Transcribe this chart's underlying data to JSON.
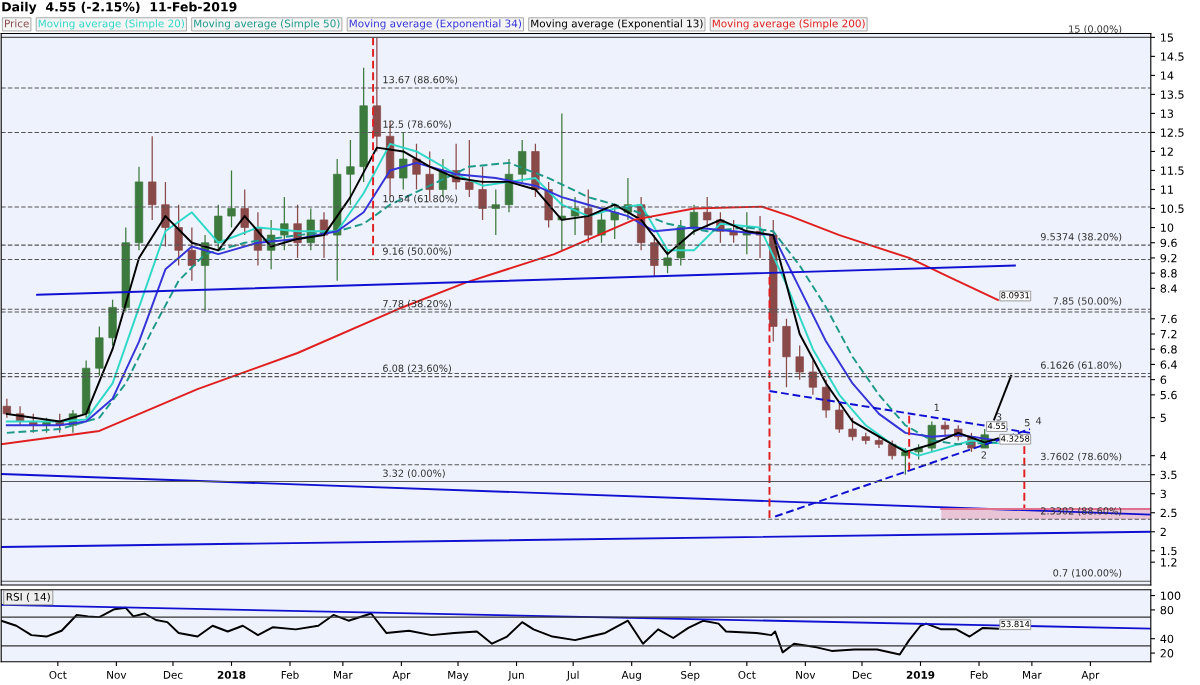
{
  "chart_data": [
    {
      "type": "candlestick",
      "title": "Daily  4.55 (-2.15%)  11-Feb-2019",
      "legend": "top left",
      "tick_labels": "y",
      "xlim": [
        "2017-09-01",
        "2019-05-03"
      ],
      "ylim": [
        0.6,
        15.1
      ],
      "yticks": [
        15,
        14.5,
        14,
        13.5,
        13,
        12.5,
        12,
        11.5,
        11,
        10.5,
        10,
        9.6,
        9.2,
        8.8,
        8.4,
        7.6,
        7.2,
        6.8,
        6.4,
        6,
        5.6,
        5,
        4,
        3.5,
        3,
        2.5,
        2,
        1.5,
        1.2
      ],
      "series": [
        {
          "type": "candlestick",
          "name": "Price",
          "x": [
            "2017-09-04",
            "2017-09-11",
            "2017-09-18",
            "2017-09-25",
            "2017-10-02",
            "2017-10-09",
            "2017-10-16",
            "2017-10-23",
            "2017-10-30",
            "2017-11-06",
            "2017-11-13",
            "2017-11-20",
            "2017-11-27",
            "2017-12-04",
            "2017-12-11",
            "2017-12-18",
            "2017-12-25",
            "2018-01-01",
            "2018-01-08",
            "2018-01-15",
            "2018-01-22",
            "2018-01-29",
            "2018-02-05",
            "2018-02-12",
            "2018-02-19",
            "2018-02-26",
            "2018-03-05",
            "2018-03-12",
            "2018-03-19",
            "2018-03-26",
            "2018-04-02",
            "2018-04-09",
            "2018-04-16",
            "2018-04-23",
            "2018-04-30",
            "2018-05-07",
            "2018-05-14",
            "2018-05-21",
            "2018-05-28",
            "2018-06-04",
            "2018-06-11",
            "2018-06-18",
            "2018-06-25",
            "2018-07-02",
            "2018-07-09",
            "2018-07-16",
            "2018-07-23",
            "2018-07-30",
            "2018-08-06",
            "2018-08-13",
            "2018-08-20",
            "2018-08-27",
            "2018-09-03",
            "2018-09-10",
            "2018-09-17",
            "2018-09-24",
            "2018-10-01",
            "2018-10-08",
            "2018-10-15",
            "2018-10-22",
            "2018-10-29",
            "2018-11-05",
            "2018-11-12",
            "2018-11-19",
            "2018-11-26",
            "2018-12-03",
            "2018-12-10",
            "2018-12-17",
            "2018-12-24",
            "2018-12-31",
            "2019-01-07",
            "2019-01-14",
            "2019-01-21",
            "2019-01-28",
            "2019-02-04"
          ],
          "ohlc": [
            [
              5.3,
              5.5,
              5.0,
              5.1
            ],
            [
              5.1,
              5.3,
              4.8,
              4.9
            ],
            [
              4.9,
              5.1,
              4.6,
              4.8
            ],
            [
              4.8,
              5.0,
              4.6,
              4.9
            ],
            [
              4.9,
              5.1,
              4.6,
              4.8
            ],
            [
              4.8,
              5.2,
              4.6,
              5.1
            ],
            [
              5.1,
              6.5,
              5.0,
              6.3
            ],
            [
              6.3,
              7.4,
              6.1,
              7.1
            ],
            [
              7.1,
              8.1,
              6.9,
              7.9
            ],
            [
              7.9,
              10.0,
              7.8,
              9.6
            ],
            [
              9.6,
              11.6,
              9.4,
              11.2
            ],
            [
              11.2,
              12.4,
              10.2,
              10.6
            ],
            [
              10.6,
              11.2,
              9.5,
              10.0
            ],
            [
              10.0,
              10.6,
              9.0,
              9.4
            ],
            [
              9.4,
              10.0,
              8.6,
              9.0
            ],
            [
              9.0,
              9.8,
              7.8,
              9.6
            ],
            [
              9.6,
              10.6,
              9.4,
              10.3
            ],
            [
              10.3,
              11.5,
              10.0,
              10.5
            ],
            [
              10.5,
              11.0,
              9.8,
              10.0
            ],
            [
              10.0,
              10.4,
              9.0,
              9.4
            ],
            [
              9.4,
              10.2,
              8.9,
              9.8
            ],
            [
              9.8,
              10.8,
              9.4,
              10.1
            ],
            [
              10.1,
              10.6,
              9.2,
              9.6
            ],
            [
              9.6,
              10.5,
              9.4,
              10.2
            ],
            [
              10.2,
              10.4,
              9.2,
              9.8
            ],
            [
              9.8,
              11.8,
              8.6,
              11.4
            ],
            [
              11.4,
              12.3,
              10.6,
              11.6
            ],
            [
              11.6,
              14.2,
              11.2,
              13.2
            ],
            [
              13.2,
              15.0,
              12.0,
              12.4
            ],
            [
              12.4,
              12.8,
              10.8,
              11.3
            ],
            [
              11.3,
              12.5,
              11.0,
              11.8
            ],
            [
              11.8,
              12.2,
              11.0,
              11.4
            ],
            [
              11.4,
              12.0,
              10.7,
              11.0
            ],
            [
              11.0,
              11.8,
              10.8,
              11.5
            ],
            [
              11.5,
              12.2,
              11.0,
              11.2
            ],
            [
              11.2,
              12.3,
              10.8,
              11.0
            ],
            [
              11.0,
              11.6,
              10.2,
              10.5
            ],
            [
              10.5,
              11.0,
              9.8,
              10.6
            ],
            [
              10.6,
              11.8,
              10.4,
              11.4
            ],
            [
              11.4,
              12.3,
              11.2,
              12.0
            ],
            [
              12.0,
              12.2,
              10.8,
              11.0
            ],
            [
              11.0,
              11.2,
              10.0,
              10.2
            ],
            [
              10.2,
              13.0,
              9.4,
              10.3
            ],
            [
              10.3,
              10.8,
              9.8,
              10.5
            ],
            [
              10.5,
              11.0,
              9.6,
              9.8
            ],
            [
              9.8,
              10.4,
              9.6,
              10.2
            ],
            [
              10.2,
              10.6,
              9.7,
              10.4
            ],
            [
              10.4,
              11.3,
              10.2,
              10.6
            ],
            [
              10.6,
              10.8,
              9.4,
              9.6
            ],
            [
              9.6,
              9.8,
              8.7,
              9.0
            ],
            [
              9.0,
              9.4,
              8.8,
              9.2
            ],
            [
              9.2,
              10.2,
              9.0,
              10.0
            ],
            [
              10.0,
              10.6,
              9.8,
              10.4
            ],
            [
              10.4,
              10.8,
              10.0,
              10.2
            ],
            [
              10.2,
              10.4,
              9.6,
              9.9
            ],
            [
              9.9,
              10.2,
              9.6,
              9.8
            ],
            [
              9.8,
              10.4,
              9.3,
              9.9
            ],
            [
              9.9,
              10.3,
              9.2,
              9.8
            ],
            [
              9.8,
              10.2,
              7.0,
              7.4
            ],
            [
              7.4,
              7.6,
              5.8,
              6.6
            ],
            [
              6.6,
              6.9,
              6.0,
              6.2
            ],
            [
              6.2,
              6.5,
              5.6,
              5.8
            ],
            [
              5.8,
              6.0,
              5.0,
              5.2
            ],
            [
              5.2,
              5.4,
              4.6,
              4.7
            ],
            [
              4.7,
              5.0,
              4.4,
              4.5
            ],
            [
              4.5,
              4.6,
              4.3,
              4.4
            ],
            [
              4.4,
              4.5,
              4.2,
              4.3
            ],
            [
              4.3,
              4.4,
              3.9,
              4.0
            ],
            [
              4.0,
              4.2,
              3.5,
              4.1
            ],
            [
              4.1,
              4.3,
              3.9,
              4.2
            ],
            [
              4.2,
              4.9,
              4.1,
              4.8
            ],
            [
              4.8,
              4.9,
              4.5,
              4.7
            ],
            [
              4.7,
              4.8,
              4.4,
              4.5
            ],
            [
              4.5,
              4.6,
              4.1,
              4.2
            ],
            [
              4.2,
              4.7,
              4.2,
              4.55
            ]
          ],
          "value_labels": [
            null,
            null,
            null,
            null,
            null,
            null,
            null,
            null,
            null,
            null,
            null,
            null,
            null,
            null,
            null,
            null,
            null,
            null,
            null,
            null,
            null,
            null,
            null,
            null,
            null,
            null,
            null,
            null,
            null,
            null,
            null,
            null,
            null,
            null,
            null,
            null,
            null,
            null,
            null,
            null,
            null,
            null,
            null,
            null,
            null,
            null,
            null,
            null,
            null,
            null,
            null,
            null,
            null,
            null,
            null,
            null,
            null,
            null,
            null,
            null,
            null,
            null,
            null,
            null,
            null,
            null,
            null,
            null,
            null,
            null,
            null,
            null,
            null,
            null,
            "4.55"
          ],
          "colors": [
            "#8a4a4a",
            "#8a4a4a",
            "#8a4a4a",
            "#3d7a3d",
            "#8a4a4a",
            "#3d7a3d",
            "#3d7a3d",
            "#3d7a3d",
            "#3d7a3d",
            "#3d7a3d",
            "#3d7a3d",
            "#8a4a4a",
            "#8a4a4a",
            "#8a4a4a",
            "#8a4a4a",
            "#3d7a3d",
            "#3d7a3d",
            "#3d7a3d",
            "#8a4a4a",
            "#8a4a4a",
            "#3d7a3d",
            "#3d7a3d",
            "#8a4a4a",
            "#3d7a3d",
            "#8a4a4a",
            "#3d7a3d",
            "#3d7a3d",
            "#3d7a3d",
            "#8a4a4a",
            "#8a4a4a",
            "#3d7a3d",
            "#8a4a4a",
            "#8a4a4a",
            "#3d7a3d",
            "#8a4a4a",
            "#8a4a4a",
            "#8a4a4a",
            "#3d7a3d",
            "#3d7a3d",
            "#3d7a3d",
            "#8a4a4a",
            "#8a4a4a",
            "#3d7a3d",
            "#3d7a3d",
            "#8a4a4a",
            "#3d7a3d",
            "#3d7a3d",
            "#3d7a3d",
            "#8a4a4a",
            "#8a4a4a",
            "#3d7a3d",
            "#3d7a3d",
            "#3d7a3d",
            "#8a4a4a",
            "#8a4a4a",
            "#8a4a4a",
            "#3d7a3d",
            "#8a4a4a",
            "#8a4a4a",
            "#8a4a4a",
            "#8a4a4a",
            "#8a4a4a",
            "#8a4a4a",
            "#8a4a4a",
            "#8a4a4a",
            "#8a4a4a",
            "#8a4a4a",
            "#8a4a4a",
            "#3d7a3d",
            "#3d7a3d",
            "#3d7a3d",
            "#8a4a4a",
            "#8a4a4a",
            "#8a4a4a",
            "#3d7a3d"
          ]
        },
        {
          "type": "line",
          "name": "Moving average (Simple 20)",
          "color": "#30d8c8",
          "x": [
            "2017-09-04",
            "2017-10-02",
            "2017-10-16",
            "2017-10-30",
            "2017-11-13",
            "2017-11-27",
            "2017-12-11",
            "2017-12-25",
            "2018-01-15",
            "2018-02-05",
            "2018-02-26",
            "2018-03-12",
            "2018-03-26",
            "2018-04-09",
            "2018-04-30",
            "2018-05-14",
            "2018-05-28",
            "2018-06-11",
            "2018-06-25",
            "2018-07-09",
            "2018-07-23",
            "2018-08-06",
            "2018-08-20",
            "2018-09-03",
            "2018-09-17",
            "2018-10-08",
            "2018-10-22",
            "2018-11-05",
            "2018-11-19",
            "2018-12-03",
            "2018-12-17",
            "2018-12-31",
            "2019-01-14",
            "2019-01-28",
            "2019-02-11"
          ],
          "values": [
            4.9,
            4.9,
            4.95,
            5.9,
            7.9,
            9.9,
            10.4,
            9.6,
            10.0,
            9.9,
            9.9,
            10.9,
            12.2,
            12.0,
            11.4,
            11.1,
            11.2,
            11.3,
            10.6,
            10.3,
            10.5,
            10.6,
            9.4,
            9.4,
            10.1,
            10.0,
            8.5,
            6.8,
            5.6,
            4.8,
            4.3,
            4.0,
            4.2,
            4.4,
            4.3258
          ],
          "value_labels": [
            null,
            null,
            null,
            null,
            null,
            null,
            null,
            null,
            null,
            null,
            null,
            null,
            null,
            null,
            null,
            null,
            null,
            null,
            null,
            null,
            null,
            null,
            null,
            null,
            null,
            null,
            null,
            null,
            null,
            null,
            null,
            null,
            null,
            null,
            "4.3258"
          ]
        },
        {
          "type": "line",
          "name": "Moving average (Simple 50)",
          "color": "#1e9a8a",
          "line_style": "dashed",
          "x": [
            "2017-09-04",
            "2017-10-02",
            "2017-10-23",
            "2017-11-06",
            "2017-11-20",
            "2017-12-04",
            "2017-12-18",
            "2018-01-08",
            "2018-02-05",
            "2018-02-26",
            "2018-03-12",
            "2018-03-26",
            "2018-04-16",
            "2018-05-07",
            "2018-05-28",
            "2018-06-18",
            "2018-07-09",
            "2018-07-30",
            "2018-08-20",
            "2018-09-10",
            "2018-10-01",
            "2018-10-15",
            "2018-10-29",
            "2018-11-12",
            "2018-11-26",
            "2018-12-10",
            "2018-12-24",
            "2019-01-07",
            "2019-01-21",
            "2019-02-11"
          ],
          "values": [
            4.6,
            4.7,
            5.0,
            5.9,
            7.3,
            8.6,
            9.3,
            9.6,
            9.8,
            9.9,
            10.1,
            10.6,
            11.1,
            11.6,
            11.7,
            11.3,
            10.8,
            10.5,
            10.1,
            9.9,
            10.0,
            9.9,
            9.0,
            7.9,
            6.6,
            5.6,
            4.8,
            4.4,
            4.3,
            4.35
          ]
        },
        {
          "type": "line",
          "name": "Moving average (Exponential 34)",
          "color": "#3434d8",
          "x": [
            "2017-09-04",
            "2017-10-02",
            "2017-10-16",
            "2017-10-30",
            "2017-11-13",
            "2017-11-27",
            "2017-12-11",
            "2017-12-25",
            "2018-01-15",
            "2018-02-05",
            "2018-02-26",
            "2018-03-12",
            "2018-03-26",
            "2018-04-09",
            "2018-04-30",
            "2018-05-21",
            "2018-06-11",
            "2018-06-25",
            "2018-07-09",
            "2018-07-30",
            "2018-08-13",
            "2018-09-03",
            "2018-09-24",
            "2018-10-15",
            "2018-10-29",
            "2018-11-12",
            "2018-11-26",
            "2018-12-10",
            "2018-12-24",
            "2019-01-07",
            "2019-01-21",
            "2019-02-11"
          ],
          "values": [
            4.8,
            4.8,
            4.9,
            5.5,
            7.0,
            8.9,
            9.5,
            9.3,
            9.6,
            9.7,
            9.9,
            10.4,
            11.5,
            11.7,
            11.4,
            11.3,
            11.1,
            10.8,
            10.6,
            10.3,
            9.9,
            10.0,
            9.9,
            9.8,
            8.4,
            7.0,
            5.9,
            5.1,
            4.6,
            4.5,
            4.55,
            4.4
          ]
        },
        {
          "type": "line",
          "name": "Moving average (Exponential 13)",
          "color": "#000000",
          "x": [
            "2017-09-04",
            "2017-10-02",
            "2017-10-16",
            "2017-10-30",
            "2017-11-13",
            "2017-11-27",
            "2017-12-11",
            "2017-12-25",
            "2018-01-08",
            "2018-01-22",
            "2018-02-05",
            "2018-02-19",
            "2018-03-05",
            "2018-03-19",
            "2018-04-02",
            "2018-04-16",
            "2018-04-30",
            "2018-05-14",
            "2018-05-28",
            "2018-06-11",
            "2018-06-25",
            "2018-07-09",
            "2018-07-23",
            "2018-08-06",
            "2018-08-20",
            "2018-09-03",
            "2018-09-17",
            "2018-10-01",
            "2018-10-15",
            "2018-10-29",
            "2018-11-12",
            "2018-11-26",
            "2018-12-10",
            "2018-12-24",
            "2019-01-07",
            "2019-01-21",
            "2019-02-04",
            "2019-02-11"
          ],
          "values": [
            5.1,
            4.9,
            5.1,
            6.8,
            9.2,
            10.3,
            9.6,
            9.4,
            10.3,
            9.5,
            9.7,
            9.8,
            10.8,
            12.1,
            12.0,
            11.6,
            11.3,
            11.2,
            11.2,
            11.0,
            10.2,
            10.3,
            10.6,
            10.2,
            9.3,
            9.9,
            10.2,
            9.9,
            9.8,
            7.2,
            5.9,
            4.9,
            4.5,
            4.1,
            4.3,
            4.6,
            4.35,
            4.45
          ]
        },
        {
          "type": "line",
          "name": "Moving average (Simple 200)",
          "color": "#e02020",
          "x": [
            "2017-09-01",
            "2017-10-23",
            "2017-12-14",
            "2018-02-05",
            "2018-03-30",
            "2018-05-05",
            "2018-06-21",
            "2018-08-02",
            "2018-09-03",
            "2018-10-09",
            "2018-10-24",
            "2018-11-19",
            "2018-12-26",
            "2019-01-16",
            "2019-02-11"
          ],
          "values": [
            4.3,
            4.65,
            5.75,
            6.7,
            7.85,
            8.55,
            9.3,
            10.2,
            10.5,
            10.55,
            10.3,
            9.8,
            9.2,
            8.7,
            8.0931
          ],
          "value_labels": [
            null,
            null,
            null,
            null,
            null,
            null,
            null,
            null,
            null,
            null,
            null,
            null,
            null,
            null,
            "8.0931"
          ]
        },
        {
          "type": "line",
          "color": "#1010d0",
          "x": [
            "2017-09-20",
            "2019-02-20"
          ],
          "values": [
            8.23,
            9.0
          ]
        },
        {
          "type": "line",
          "color": "#1010d0",
          "x": [
            "2017-09-01",
            "2019-05-03"
          ],
          "values": [
            3.52,
            2.45
          ]
        },
        {
          "type": "line",
          "color": "#1010d0",
          "x": [
            "2017-09-01",
            "2019-05-03"
          ],
          "values": [
            1.6,
            2.0
          ]
        },
        {
          "type": "line",
          "color": "#1010d0",
          "line_style": "dashed",
          "x": [
            "2018-10-13",
            "2019-02-28"
          ],
          "values": [
            5.7,
            4.6
          ]
        },
        {
          "type": "line",
          "color": "#1010d0",
          "line_style": "dashed",
          "x": [
            "2018-10-16",
            "2019-02-28"
          ],
          "values": [
            2.4,
            4.7
          ]
        },
        {
          "type": "line",
          "color": "#e02020",
          "line_style": "dashed",
          "x": [
            "2018-03-17",
            "2018-03-17"
          ],
          "values": [
            15.0,
            9.15
          ]
        },
        {
          "type": "line",
          "color": "#e02020",
          "line_style": "dashed",
          "x": [
            "2018-10-13",
            "2018-10-13"
          ],
          "values": [
            8.7,
            2.35
          ]
        },
        {
          "type": "line",
          "color": "#e02020",
          "line_style": "dashed",
          "x": [
            "2018-12-26",
            "2018-12-26"
          ],
          "values": [
            5.05,
            3.52
          ]
        },
        {
          "type": "line",
          "color": "#e02020",
          "line_style": "dashed",
          "x": [
            "2019-02-25",
            "2019-02-25"
          ],
          "values": [
            4.25,
            2.6
          ]
        },
        {
          "type": "line",
          "color": "#000000",
          "x": [
            "2019-02-09",
            "2019-02-18"
          ],
          "values": [
            4.95,
            6.1
          ]
        },
        {
          "type": "line",
          "color": "#e07090",
          "x": [
            "2019-01-12",
            "2019-05-03"
          ],
          "values": [
            2.6,
            2.6
          ],
          "lower": [
            2.33,
            2.33
          ],
          "upper": [
            2.6,
            2.6
          ]
        }
      ],
      "ref_lines": [
        {
          "axis": "y",
          "value": 15,
          "label": "15 (0.00%)",
          "color": "#555555",
          "line_style": "solid"
        },
        {
          "axis": "y",
          "value": 13.67,
          "color": "#555555",
          "line_style": "dashed"
        },
        {
          "axis": "y",
          "value": 12.5,
          "color": "#555555",
          "line_style": "dashed"
        },
        {
          "axis": "y",
          "value": 10.54,
          "color": "#555555",
          "line_style": "dashed"
        },
        {
          "axis": "y",
          "value": 9.16,
          "color": "#555555",
          "line_style": "dashed"
        },
        {
          "axis": "y",
          "value": 7.78,
          "color": "#555555",
          "line_style": "dashed"
        },
        {
          "axis": "y",
          "value": 6.08,
          "color": "#555555",
          "line_style": "dashed"
        },
        {
          "axis": "y",
          "value": 3.32,
          "color": "#555555",
          "line_style": "solid"
        },
        {
          "axis": "y",
          "value": 9.5374,
          "label": "9.5374 (38.20%)",
          "color": "#555555",
          "line_style": "dashed"
        },
        {
          "axis": "y",
          "value": 7.85,
          "label": "7.85 (50.00%)",
          "color": "#555555",
          "line_style": "dashed"
        },
        {
          "axis": "y",
          "value": 6.1626,
          "label": "6.1626 (61.80%)",
          "color": "#555555",
          "line_style": "dashed"
        },
        {
          "axis": "y",
          "value": 3.7602,
          "label": "3.7602 (78.60%)",
          "color": "#555555",
          "line_style": "dashed"
        },
        {
          "axis": "y",
          "value": 2.3302,
          "label": "2.3302 (88.60%)",
          "color": "#555555",
          "line_style": "dashed"
        },
        {
          "axis": "y",
          "value": 0.7,
          "label": "0.7 (100.00%)",
          "color": "#555555",
          "line_style": "solid"
        }
      ],
      "annotations": [
        {
          "text": "13.67 (88.60%)",
          "x": "2018-03-19",
          "y": 13.67
        },
        {
          "text": "12.5 (78.60%)",
          "x": "2018-03-19",
          "y": 12.5
        },
        {
          "text": "10.54 (61.80%)",
          "x": "2018-03-19",
          "y": 10.54
        },
        {
          "text": "9.16 (50.00%)",
          "x": "2018-03-19",
          "y": 9.16
        },
        {
          "text": "7.78 (38.20%)",
          "x": "2018-03-19",
          "y": 7.78
        },
        {
          "text": "6.08 (23.60%)",
          "x": "2018-03-19",
          "y": 6.08
        },
        {
          "text": "3.32 (0.00%)",
          "x": "2018-03-19",
          "y": 3.32
        },
        {
          "text": "1",
          "x": "2019-01-05",
          "y": 5.05
        },
        {
          "text": "2",
          "x": "2019-01-30",
          "y": 3.8
        },
        {
          "text": "3",
          "x": "2019-02-07",
          "y": 4.8
        },
        {
          "text": "4",
          "x": "2019-02-28",
          "y": 4.7
        },
        {
          "text": "5",
          "x": "2019-02-22",
          "y": 4.65
        }
      ]
    },
    {
      "type": "line",
      "title": "RSI ( 14)",
      "xlim": [
        "2017-09-01",
        "2019-05-03"
      ],
      "ylim": [
        8,
        108
      ],
      "yticks": [
        20,
        40,
        80,
        100
      ],
      "xticks": [
        {
          "value": "2017-10-01",
          "label": "Oct"
        },
        {
          "value": "2017-11-01",
          "label": "Nov"
        },
        {
          "value": "2017-12-01",
          "label": "Dec"
        },
        {
          "value": "2018-01-01",
          "label": "2018"
        },
        {
          "value": "2018-02-01",
          "label": "Feb"
        },
        {
          "value": "2018-03-01",
          "label": "Mar"
        },
        {
          "value": "2018-04-01",
          "label": "Apr"
        },
        {
          "value": "2018-05-01",
          "label": "May"
        },
        {
          "value": "2018-06-01",
          "label": "Jun"
        },
        {
          "value": "2018-07-01",
          "label": "Jul"
        },
        {
          "value": "2018-08-01",
          "label": "Aug"
        },
        {
          "value": "2018-09-01",
          "label": "Sep"
        },
        {
          "value": "2018-10-01",
          "label": "Oct"
        },
        {
          "value": "2018-11-01",
          "label": "Nov"
        },
        {
          "value": "2018-12-01",
          "label": "Dec"
        },
        {
          "value": "2019-01-01",
          "label": "2019"
        },
        {
          "value": "2019-02-01",
          "label": "Feb"
        },
        {
          "value": "2019-03-01",
          "label": "Mar"
        },
        {
          "value": "2019-04-01",
          "label": "Apr"
        }
      ],
      "series": [
        {
          "color": "#000000",
          "x": [
            "2017-09-01",
            "2017-09-09",
            "2017-09-17",
            "2017-09-25",
            "2017-10-03",
            "2017-10-11",
            "2017-10-17",
            "2017-10-23",
            "2017-10-31",
            "2017-11-06",
            "2017-11-10",
            "2017-11-16",
            "2017-11-22",
            "2017-11-28",
            "2017-12-04",
            "2017-12-14",
            "2017-12-22",
            "2017-12-30",
            "2018-01-07",
            "2018-01-15",
            "2018-01-23",
            "2018-02-04",
            "2018-02-16",
            "2018-02-24",
            "2018-03-04",
            "2018-03-16",
            "2018-03-24",
            "2018-04-05",
            "2018-04-17",
            "2018-04-29",
            "2018-05-11",
            "2018-05-19",
            "2018-05-27",
            "2018-06-04",
            "2018-06-10",
            "2018-06-20",
            "2018-07-02",
            "2018-07-10",
            "2018-07-18",
            "2018-07-30",
            "2018-08-07",
            "2018-08-15",
            "2018-08-23",
            "2018-08-31",
            "2018-09-08",
            "2018-09-16",
            "2018-09-20",
            "2018-10-06",
            "2018-10-14",
            "2018-10-16",
            "2018-10-20",
            "2018-10-26",
            "2018-11-07",
            "2018-11-15",
            "2018-11-27",
            "2018-12-09",
            "2018-12-21",
            "2018-12-26",
            "2019-01-01",
            "2019-01-04",
            "2019-01-12",
            "2019-01-20",
            "2019-01-27",
            "2019-02-03",
            "2019-02-11"
          ],
          "values": [
            65,
            58,
            45,
            43,
            51,
            73,
            71,
            70,
            81,
            83,
            71,
            75,
            66,
            63,
            48,
            43,
            58,
            50,
            58,
            45,
            56,
            53,
            58,
            73,
            65,
            75,
            48,
            51,
            45,
            48,
            50,
            33,
            43,
            63,
            53,
            43,
            38,
            43,
            48,
            65,
            33,
            53,
            41,
            55,
            65,
            61,
            50,
            48,
            45,
            50,
            21,
            33,
            28,
            23,
            25,
            25,
            18,
            38,
            58,
            61,
            53,
            53,
            43,
            55,
            53.814
          ],
          "value_labels": [
            null,
            null,
            null,
            null,
            null,
            null,
            null,
            null,
            null,
            null,
            null,
            null,
            null,
            null,
            null,
            null,
            null,
            null,
            null,
            null,
            null,
            null,
            null,
            null,
            null,
            null,
            null,
            null,
            null,
            null,
            null,
            null,
            null,
            null,
            null,
            null,
            null,
            null,
            null,
            null,
            null,
            null,
            null,
            null,
            null,
            null,
            null,
            null,
            null,
            null,
            null,
            null,
            null,
            null,
            null,
            null,
            null,
            null,
            null,
            null,
            null,
            null,
            null,
            null,
            "53.814"
          ]
        },
        {
          "color": "#1010d0",
          "x": [
            "2017-09-01",
            "2019-05-03"
          ],
          "values": [
            87,
            54
          ]
        }
      ],
      "ref_lines": [
        {
          "axis": "y",
          "value": 70,
          "color": "#333333",
          "line_style": "solid"
        },
        {
          "axis": "y",
          "value": 30,
          "color": "#333333",
          "line_style": "solid"
        }
      ]
    }
  ]
}
